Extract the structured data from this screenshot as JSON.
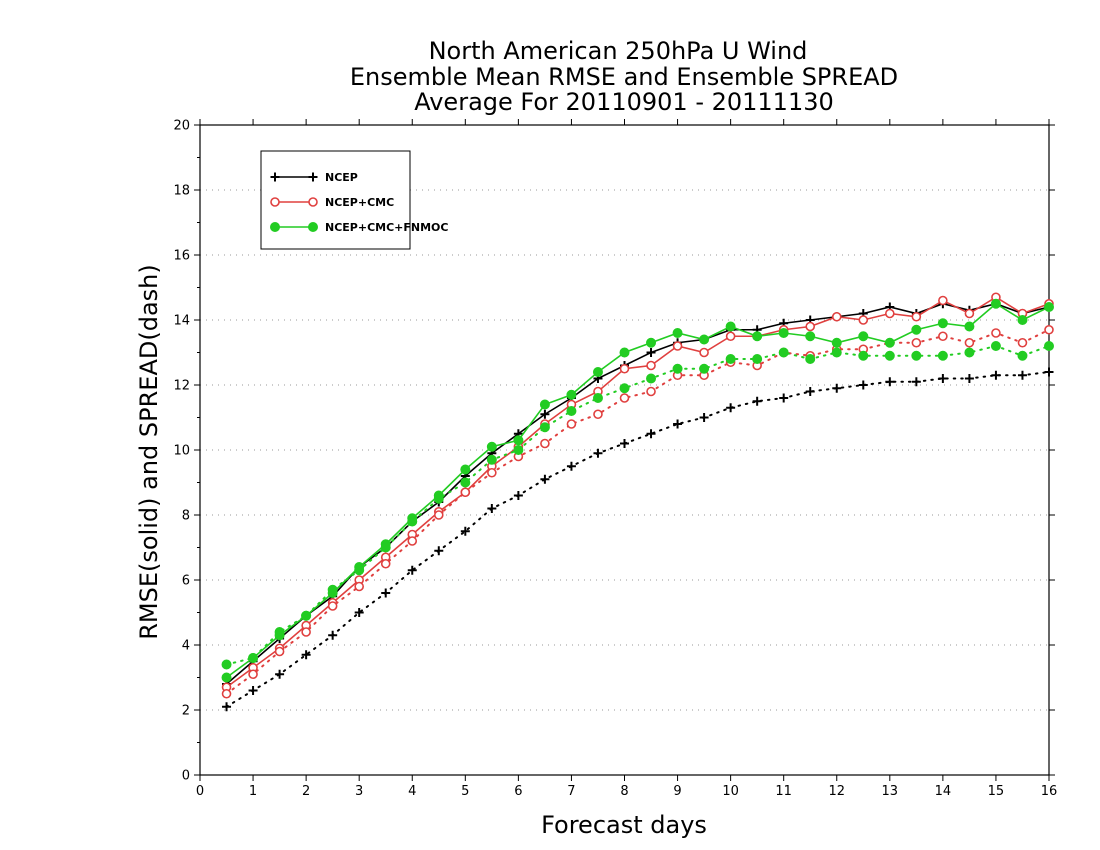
{
  "chart_data": {
    "type": "line",
    "title": [
      "North American 250hPa U Wind",
      "Ensemble Mean RMSE and Ensemble SPREAD",
      "Average For 20110901 - 20111130"
    ],
    "xlabel": "Forecast days",
    "ylabel": "RMSE(solid) and SPREAD(dash)",
    "xlim": [
      0,
      16
    ],
    "ylim": [
      0,
      20
    ],
    "xticks": [
      0,
      1,
      2,
      3,
      4,
      5,
      6,
      7,
      8,
      9,
      10,
      11,
      12,
      13,
      14,
      15,
      16
    ],
    "yticks": [
      0,
      2,
      4,
      6,
      8,
      10,
      12,
      14,
      16,
      18,
      20
    ],
    "grid": "horizontal dotted",
    "legend_position": "top-left",
    "x": [
      0.5,
      1,
      1.5,
      2,
      2.5,
      3,
      3.5,
      4,
      4.5,
      5,
      5.5,
      6,
      6.5,
      7,
      7.5,
      8,
      8.5,
      9,
      9.5,
      10,
      10.5,
      11,
      11.5,
      12,
      12.5,
      13,
      13.5,
      14,
      14.5,
      15,
      15.5,
      16
    ],
    "series": [
      {
        "name": "NCEP",
        "color": "#000000",
        "marker": "plus",
        "rmse": [
          2.8,
          3.5,
          4.2,
          4.9,
          5.5,
          6.4,
          7.0,
          7.8,
          8.4,
          9.2,
          9.9,
          10.5,
          11.1,
          11.6,
          12.2,
          12.6,
          13.0,
          13.3,
          13.4,
          13.7,
          13.7,
          13.9,
          14.0,
          14.1,
          14.2,
          14.4,
          14.2,
          14.5,
          14.3,
          14.5,
          14.2,
          14.4
        ],
        "spread": [
          2.1,
          2.6,
          3.1,
          3.7,
          4.3,
          5.0,
          5.6,
          6.3,
          6.9,
          7.5,
          8.2,
          8.6,
          9.1,
          9.5,
          9.9,
          10.2,
          10.5,
          10.8,
          11.0,
          11.3,
          11.5,
          11.6,
          11.8,
          11.9,
          12.0,
          12.1,
          12.1,
          12.2,
          12.2,
          12.3,
          12.3,
          12.4
        ]
      },
      {
        "name": "NCEP+CMC",
        "color": "#e0403f",
        "marker": "circle-open",
        "rmse": [
          2.7,
          3.3,
          3.9,
          4.6,
          5.3,
          6.0,
          6.7,
          7.4,
          8.1,
          8.7,
          9.5,
          10.1,
          10.8,
          11.4,
          11.8,
          12.5,
          12.6,
          13.2,
          13.0,
          13.5,
          13.5,
          13.7,
          13.8,
          14.1,
          14.0,
          14.2,
          14.1,
          14.6,
          14.2,
          14.7,
          14.2,
          14.5
        ],
        "spread": [
          2.5,
          3.1,
          3.8,
          4.4,
          5.2,
          5.8,
          6.5,
          7.2,
          8.0,
          8.7,
          9.3,
          9.8,
          10.2,
          10.8,
          11.1,
          11.6,
          11.8,
          12.3,
          12.3,
          12.7,
          12.6,
          13.0,
          12.9,
          13.1,
          13.1,
          13.3,
          13.3,
          13.5,
          13.3,
          13.6,
          13.3,
          13.7
        ]
      },
      {
        "name": "NCEP+CMC+FNMOC",
        "color": "#22cc22",
        "marker": "circle-filled",
        "rmse": [
          3.0,
          3.6,
          4.3,
          4.9,
          5.6,
          6.4,
          7.1,
          7.9,
          8.6,
          9.4,
          10.1,
          10.3,
          11.4,
          11.7,
          12.4,
          13.0,
          13.3,
          13.6,
          13.4,
          13.8,
          13.5,
          13.6,
          13.5,
          13.3,
          13.5,
          13.3,
          13.7,
          13.9,
          13.8,
          14.5,
          14.0,
          14.4
        ],
        "spread": [
          3.4,
          3.6,
          4.4,
          4.9,
          5.7,
          6.3,
          7.0,
          7.8,
          8.5,
          9.0,
          9.7,
          10.0,
          10.7,
          11.2,
          11.6,
          11.9,
          12.2,
          12.5,
          12.5,
          12.8,
          12.8,
          13.0,
          12.8,
          13.0,
          12.9,
          12.9,
          12.9,
          12.9,
          13.0,
          13.2,
          12.9,
          13.2
        ]
      }
    ]
  }
}
